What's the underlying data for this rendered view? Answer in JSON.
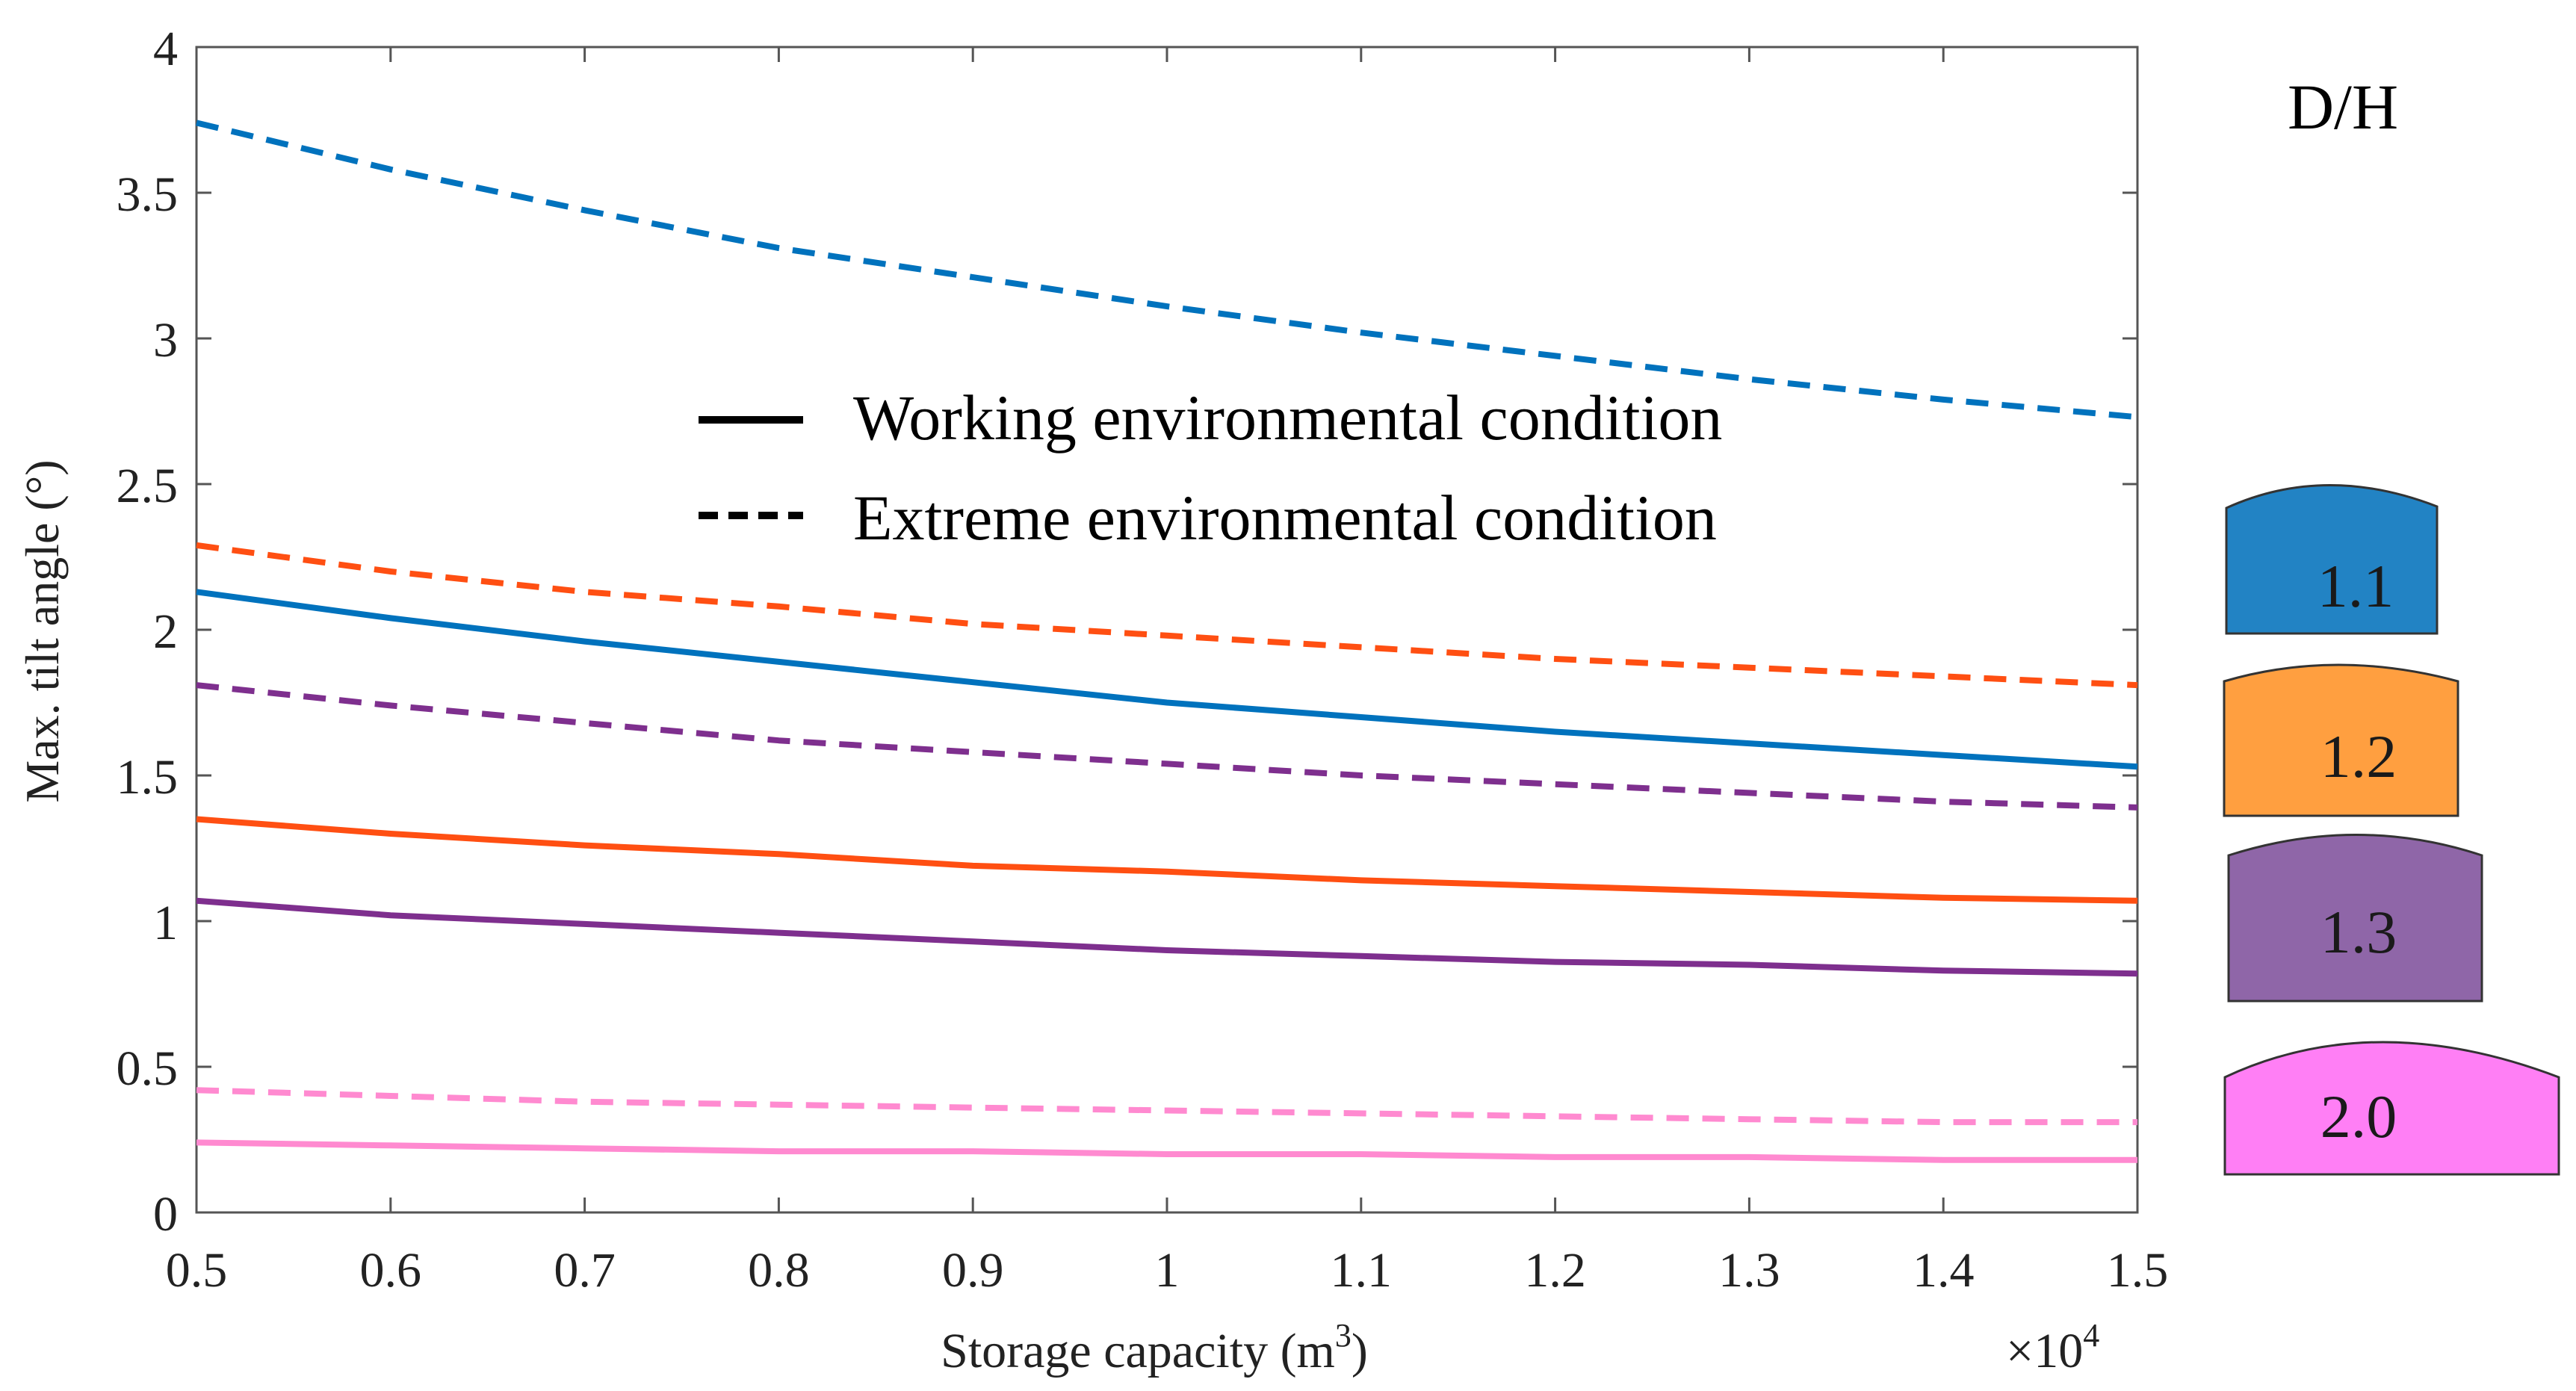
{
  "chart_data": {
    "type": "line",
    "title": "",
    "xlabel": "Storage capacity (m",
    "xlabel_sup": "3",
    "xlabel_close": ")",
    "x_multiplier_prefix": "×10",
    "x_multiplier_exp": "4",
    "ylabel": "Max. tilt angle (°)",
    "xlim": [
      0.5,
      1.5
    ],
    "ylim": [
      0,
      4
    ],
    "xticks": [
      0.5,
      0.6,
      0.7,
      0.8,
      0.9,
      1,
      1.1,
      1.2,
      1.3,
      1.4,
      1.5
    ],
    "xtick_labels": [
      "0.5",
      "0.6",
      "0.7",
      "0.8",
      "0.9",
      "1",
      "1.1",
      "1.2",
      "1.3",
      "1.4",
      "1.5"
    ],
    "yticks": [
      0,
      0.5,
      1,
      1.5,
      2,
      2.5,
      3,
      3.5,
      4
    ],
    "ytick_labels": [
      "0",
      "0.5",
      "1",
      "1.5",
      "2",
      "2.5",
      "3",
      "3.5",
      "4"
    ],
    "grid": false,
    "x": [
      0.5,
      0.6,
      0.7,
      0.8,
      0.9,
      1.0,
      1.1,
      1.2,
      1.3,
      1.4,
      1.5
    ],
    "series": [
      {
        "name": "D/H 1.1 working",
        "dh": "1.1",
        "condition": "working",
        "color": "#0072BD",
        "values": [
          2.13,
          2.04,
          1.96,
          1.89,
          1.82,
          1.75,
          1.7,
          1.65,
          1.61,
          1.57,
          1.53
        ]
      },
      {
        "name": "D/H 1.1 extreme",
        "dh": "1.1",
        "condition": "extreme",
        "color": "#0072BD",
        "values": [
          3.74,
          3.58,
          3.44,
          3.31,
          3.21,
          3.11,
          3.02,
          2.94,
          2.86,
          2.79,
          2.73
        ]
      },
      {
        "name": "D/H 1.2 working",
        "dh": "1.2",
        "condition": "working",
        "color": "#FF4F12",
        "values": [
          1.35,
          1.3,
          1.26,
          1.23,
          1.19,
          1.17,
          1.14,
          1.12,
          1.1,
          1.08,
          1.07
        ]
      },
      {
        "name": "D/H 1.2 extreme",
        "dh": "1.2",
        "condition": "extreme",
        "color": "#FF4F12",
        "values": [
          2.29,
          2.2,
          2.13,
          2.08,
          2.02,
          1.98,
          1.94,
          1.9,
          1.87,
          1.84,
          1.81
        ]
      },
      {
        "name": "D/H 1.3 working",
        "dh": "1.3",
        "condition": "working",
        "color": "#7E2F8E",
        "values": [
          1.07,
          1.02,
          0.99,
          0.96,
          0.93,
          0.9,
          0.88,
          0.86,
          0.85,
          0.83,
          0.82
        ]
      },
      {
        "name": "D/H 1.3 extreme",
        "dh": "1.3",
        "condition": "extreme",
        "color": "#7E2F8E",
        "values": [
          1.81,
          1.74,
          1.68,
          1.62,
          1.58,
          1.54,
          1.5,
          1.47,
          1.44,
          1.41,
          1.39
        ]
      },
      {
        "name": "D/H 2.0 working",
        "dh": "2.0",
        "condition": "working",
        "color": "#FF8AD0",
        "values": [
          0.24,
          0.23,
          0.22,
          0.21,
          0.21,
          0.2,
          0.2,
          0.19,
          0.19,
          0.18,
          0.18
        ]
      },
      {
        "name": "D/H 2.0 extreme",
        "dh": "2.0",
        "condition": "extreme",
        "color": "#FF8AD0",
        "values": [
          0.42,
          0.4,
          0.38,
          0.37,
          0.36,
          0.35,
          0.34,
          0.33,
          0.32,
          0.31,
          0.31
        ]
      }
    ],
    "legend": {
      "position": "center-left",
      "entries": [
        {
          "label": "Working environmental condition",
          "style": "solid"
        },
        {
          "label": "Extreme environmental condition",
          "style": "dashed"
        }
      ]
    },
    "dh_key": {
      "title": "D/H",
      "position": "right",
      "items": [
        {
          "label": "1.1",
          "color": "#2283C4"
        },
        {
          "label": "1.2",
          "color": "#FF9F40"
        },
        {
          "label": "1.3",
          "color": "#8F66A8"
        },
        {
          "label": "2.0",
          "color": "#FF7FF5"
        }
      ]
    }
  }
}
